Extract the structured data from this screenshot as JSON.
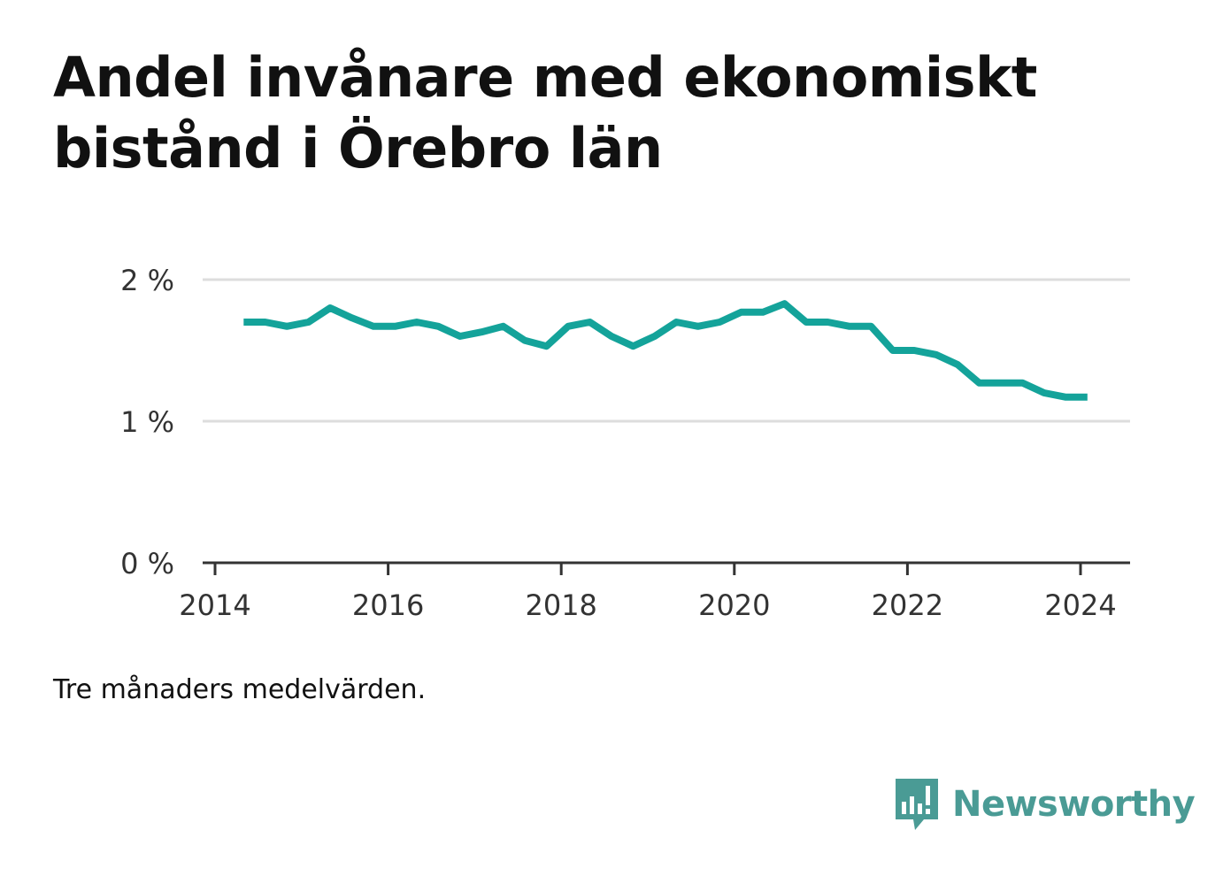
{
  "title": "Andel invånare med ekonomiskt bistånd i Örebro län",
  "note": "Tre månaders medelvärden.",
  "brand": {
    "name": "Newsworthy",
    "icon": "newsworthy-logo-icon",
    "color": "#4a9b95"
  },
  "chart_data": {
    "type": "line",
    "title": "Andel invånare med ekonomiskt bistånd i Örebro län",
    "xlabel": "",
    "ylabel": "",
    "x_ticks": [
      "2014",
      "2016",
      "2018",
      "2020",
      "2022",
      "2024"
    ],
    "y_ticks": [
      "0 %",
      "1 %",
      "2 %"
    ],
    "xlim": [
      2014,
      2024.6
    ],
    "ylim": [
      0,
      2
    ],
    "grid": true,
    "legend": "none",
    "line_color": "#14a39a",
    "series": [
      {
        "x": [
          2014.33,
          2014.58,
          2014.83,
          2015.08,
          2015.33,
          2015.58,
          2015.83,
          2016.08,
          2016.33,
          2016.58,
          2016.83,
          2017.08,
          2017.33,
          2017.58,
          2017.83,
          2018.08,
          2018.33,
          2018.58,
          2018.83,
          2019.08,
          2019.33,
          2019.58,
          2019.83,
          2020.08,
          2020.33,
          2020.58,
          2020.83,
          2021.08,
          2021.33,
          2021.58,
          2021.83,
          2022.08,
          2022.33,
          2022.58,
          2022.83,
          2023.08,
          2023.33,
          2023.58,
          2023.83,
          2024.08
        ],
        "values": [
          1.7,
          1.7,
          1.67,
          1.7,
          1.8,
          1.73,
          1.67,
          1.67,
          1.7,
          1.67,
          1.6,
          1.63,
          1.67,
          1.57,
          1.53,
          1.67,
          1.7,
          1.6,
          1.53,
          1.6,
          1.7,
          1.67,
          1.7,
          1.77,
          1.77,
          1.83,
          1.7,
          1.7,
          1.67,
          1.67,
          1.5,
          1.5,
          1.47,
          1.4,
          1.27,
          1.27,
          1.27,
          1.2,
          1.17,
          1.17
        ]
      }
    ]
  }
}
